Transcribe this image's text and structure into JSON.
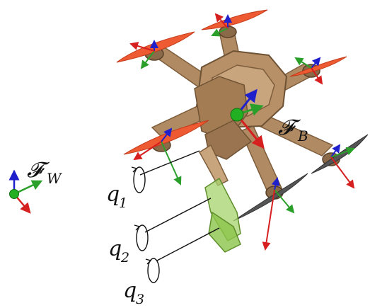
{
  "labels": {
    "world_frame": {
      "main": "𝓕",
      "sub": "W"
    },
    "body_frame": {
      "main": "𝓕",
      "sub": "B"
    },
    "joint_1": {
      "main": "q",
      "sub": "1"
    },
    "joint_2": {
      "main": "q",
      "sub": "2"
    },
    "joint_3": {
      "main": "q",
      "sub": "3"
    }
  },
  "colors": {
    "frame_x_axis": "#d62020",
    "frame_y_axis": "#2aa02a",
    "frame_z_axis": "#1f1fcc",
    "frame_origin": "#22b022",
    "drone_body": "#b08a62",
    "drone_body_dark": "#7d5d3c",
    "propeller_front": "#ee5a32",
    "propeller_rear": "#555555",
    "arm_link": "#86c04a"
  }
}
